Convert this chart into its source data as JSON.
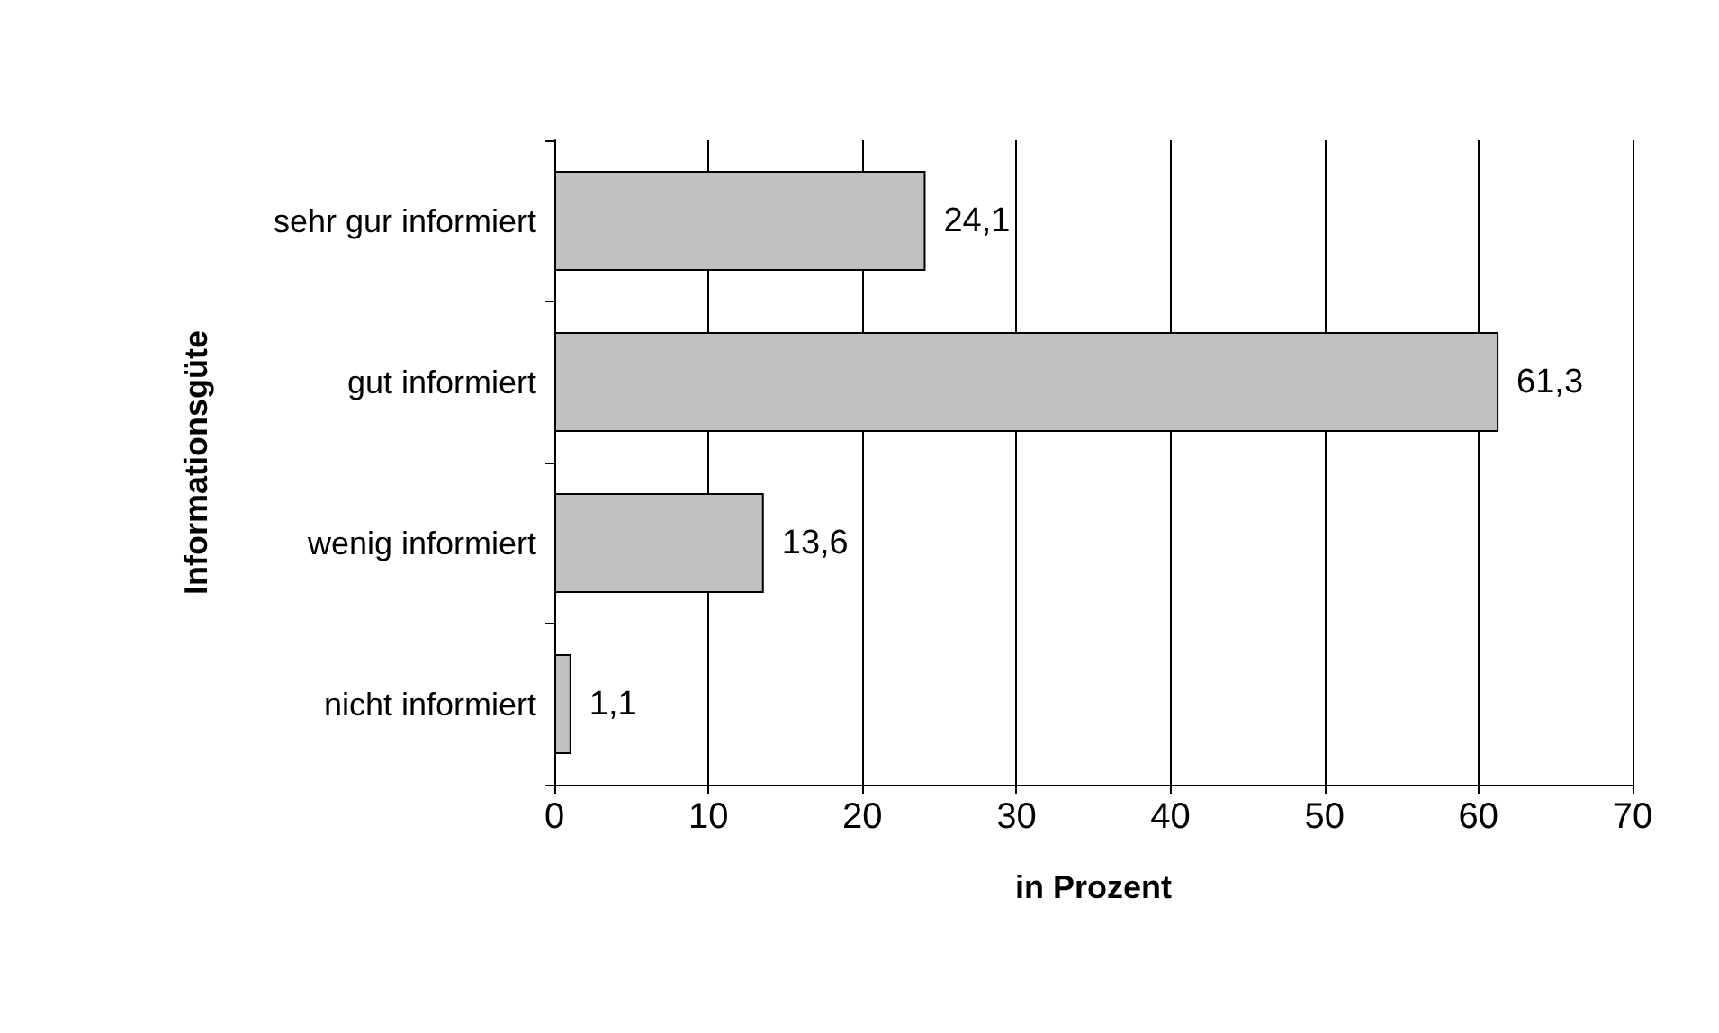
{
  "chart_data": {
    "type": "bar",
    "orientation": "horizontal",
    "xlabel": "in Prozent",
    "ylabel": "Informationsgüte",
    "categories": [
      "sehr gur informiert",
      "gut informiert",
      "wenig informiert",
      "nicht informiert"
    ],
    "values": [
      24.1,
      61.3,
      13.6,
      1.1
    ],
    "color": "#c0c0c0",
    "value_labels": [
      "24,1",
      "61,3",
      "13,6",
      "1,1"
    ],
    "xlim": [
      0,
      70
    ],
    "xticks": [
      0,
      10,
      20,
      30,
      40,
      50,
      60,
      70
    ],
    "grid": "x"
  }
}
